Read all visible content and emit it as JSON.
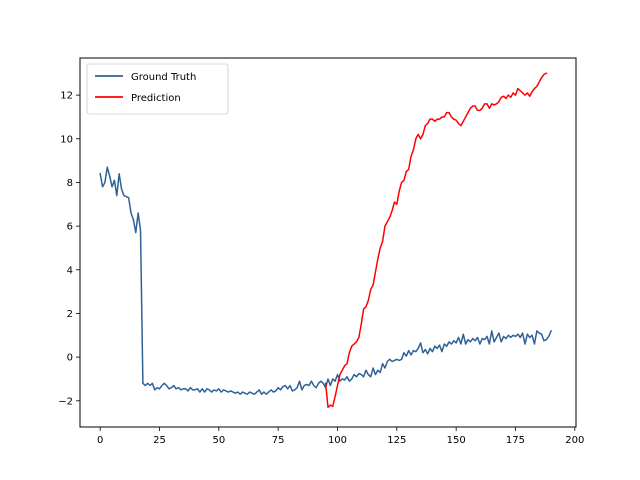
{
  "chart_data": {
    "type": "line",
    "title": "",
    "xlabel": "",
    "ylabel": "",
    "xlim": [
      -8.5,
      200.5
    ],
    "ylim": [
      -3.2,
      13.7
    ],
    "grid": false,
    "legend_position": "top-left",
    "x_ticks": [
      0,
      25,
      50,
      75,
      100,
      125,
      150,
      175,
      200
    ],
    "y_ticks": [
      -2,
      0,
      2,
      4,
      6,
      8,
      10,
      12
    ],
    "series": [
      {
        "name": "Ground Truth",
        "color": "#2f6197",
        "points": [
          [
            0,
            8.4
          ],
          [
            1,
            7.8
          ],
          [
            2,
            8.0
          ],
          [
            3,
            8.7
          ],
          [
            4,
            8.3
          ],
          [
            5,
            7.8
          ],
          [
            6,
            8.1
          ],
          [
            7,
            7.4
          ],
          [
            8,
            8.4
          ],
          [
            9,
            7.7
          ],
          [
            10,
            7.4
          ],
          [
            11,
            7.35
          ],
          [
            12,
            7.3
          ],
          [
            13,
            6.6
          ],
          [
            14,
            6.3
          ],
          [
            15,
            5.7
          ],
          [
            16,
            6.6
          ],
          [
            17,
            5.8
          ],
          [
            18,
            -1.2
          ],
          [
            19,
            -1.3
          ],
          [
            20,
            -1.2
          ],
          [
            21,
            -1.3
          ],
          [
            22,
            -1.2
          ],
          [
            23,
            -1.5
          ],
          [
            24,
            -1.4
          ],
          [
            25,
            -1.45
          ],
          [
            26,
            -1.3
          ],
          [
            27,
            -1.2
          ],
          [
            28,
            -1.3
          ],
          [
            29,
            -1.45
          ],
          [
            30,
            -1.4
          ],
          [
            31,
            -1.3
          ],
          [
            32,
            -1.45
          ],
          [
            33,
            -1.4
          ],
          [
            34,
            -1.5
          ],
          [
            35,
            -1.45
          ],
          [
            36,
            -1.45
          ],
          [
            37,
            -1.55
          ],
          [
            38,
            -1.4
          ],
          [
            39,
            -1.5
          ],
          [
            40,
            -1.5
          ],
          [
            41,
            -1.45
          ],
          [
            42,
            -1.6
          ],
          [
            43,
            -1.45
          ],
          [
            44,
            -1.6
          ],
          [
            45,
            -1.45
          ],
          [
            46,
            -1.5
          ],
          [
            47,
            -1.6
          ],
          [
            48,
            -1.5
          ],
          [
            49,
            -1.55
          ],
          [
            50,
            -1.45
          ],
          [
            51,
            -1.6
          ],
          [
            52,
            -1.5
          ],
          [
            53,
            -1.55
          ],
          [
            54,
            -1.6
          ],
          [
            55,
            -1.55
          ],
          [
            56,
            -1.6
          ],
          [
            57,
            -1.65
          ],
          [
            58,
            -1.6
          ],
          [
            59,
            -1.7
          ],
          [
            60,
            -1.6
          ],
          [
            61,
            -1.65
          ],
          [
            62,
            -1.7
          ],
          [
            63,
            -1.6
          ],
          [
            64,
            -1.65
          ],
          [
            65,
            -1.7
          ],
          [
            66,
            -1.6
          ],
          [
            67,
            -1.5
          ],
          [
            68,
            -1.7
          ],
          [
            69,
            -1.6
          ],
          [
            70,
            -1.7
          ],
          [
            71,
            -1.6
          ],
          [
            72,
            -1.5
          ],
          [
            73,
            -1.6
          ],
          [
            74,
            -1.55
          ],
          [
            75,
            -1.4
          ],
          [
            76,
            -1.5
          ],
          [
            77,
            -1.35
          ],
          [
            78,
            -1.3
          ],
          [
            79,
            -1.45
          ],
          [
            80,
            -1.3
          ],
          [
            81,
            -1.55
          ],
          [
            82,
            -1.5
          ],
          [
            83,
            -1.4
          ],
          [
            84,
            -1.1
          ],
          [
            85,
            -1.5
          ],
          [
            86,
            -1.3
          ],
          [
            87,
            -1.25
          ],
          [
            88,
            -1.3
          ],
          [
            89,
            -1.1
          ],
          [
            90,
            -1.3
          ],
          [
            91,
            -1.4
          ],
          [
            92,
            -1.2
          ],
          [
            93,
            -1.1
          ],
          [
            94,
            -1.2
          ],
          [
            95,
            -1.4
          ],
          [
            96,
            -1.0
          ],
          [
            97,
            -1.3
          ],
          [
            98,
            -1.0
          ],
          [
            99,
            -1.1
          ],
          [
            100,
            -0.8
          ],
          [
            101,
            -1.1
          ],
          [
            102,
            -1.0
          ],
          [
            103,
            -1.05
          ],
          [
            104,
            -0.9
          ],
          [
            105,
            -1.1
          ],
          [
            106,
            -1.0
          ],
          [
            107,
            -0.8
          ],
          [
            108,
            -0.9
          ],
          [
            109,
            -0.75
          ],
          [
            110,
            -0.8
          ],
          [
            111,
            -0.9
          ],
          [
            112,
            -0.6
          ],
          [
            113,
            -0.8
          ],
          [
            114,
            -0.9
          ],
          [
            115,
            -0.5
          ],
          [
            116,
            -0.8
          ],
          [
            117,
            -0.6
          ],
          [
            118,
            -0.7
          ],
          [
            119,
            -0.3
          ],
          [
            120,
            -0.5
          ],
          [
            121,
            -0.2
          ],
          [
            122,
            -0.1
          ],
          [
            123,
            -0.2
          ],
          [
            124,
            -0.15
          ],
          [
            125,
            -0.1
          ],
          [
            126,
            -0.15
          ],
          [
            127,
            -0.1
          ],
          [
            128,
            0.2
          ],
          [
            129,
            0.05
          ],
          [
            130,
            0.3
          ],
          [
            131,
            0.1
          ],
          [
            132,
            0.3
          ],
          [
            133,
            0.25
          ],
          [
            134,
            0.4
          ],
          [
            135,
            0.65
          ],
          [
            136,
            0.2
          ],
          [
            137,
            0.35
          ],
          [
            138,
            0.15
          ],
          [
            139,
            0.4
          ],
          [
            140,
            0.25
          ],
          [
            141,
            0.5
          ],
          [
            142,
            0.4
          ],
          [
            143,
            0.55
          ],
          [
            144,
            0.25
          ],
          [
            145,
            0.6
          ],
          [
            146,
            0.5
          ],
          [
            147,
            0.7
          ],
          [
            148,
            0.6
          ],
          [
            149,
            0.75
          ],
          [
            150,
            0.65
          ],
          [
            151,
            0.9
          ],
          [
            152,
            0.6
          ],
          [
            153,
            1.05
          ],
          [
            154,
            0.6
          ],
          [
            155,
            0.8
          ],
          [
            156,
            0.7
          ],
          [
            157,
            0.85
          ],
          [
            158,
            0.75
          ],
          [
            159,
            0.9
          ],
          [
            160,
            0.6
          ],
          [
            161,
            0.85
          ],
          [
            162,
            0.8
          ],
          [
            163,
            0.95
          ],
          [
            164,
            0.6
          ],
          [
            165,
            1.2
          ],
          [
            166,
            0.7
          ],
          [
            167,
            0.9
          ],
          [
            168,
            1.1
          ],
          [
            169,
            0.7
          ],
          [
            170,
            0.95
          ],
          [
            171,
            0.85
          ],
          [
            172,
            1.0
          ],
          [
            173,
            0.9
          ],
          [
            174,
            1.0
          ],
          [
            175,
            0.95
          ],
          [
            176,
            1.05
          ],
          [
            177,
            0.9
          ],
          [
            178,
            1.1
          ],
          [
            179,
            0.6
          ],
          [
            180,
            1.05
          ],
          [
            181,
            0.9
          ],
          [
            182,
            1.0
          ],
          [
            183,
            0.6
          ],
          [
            184,
            1.2
          ],
          [
            185,
            1.1
          ],
          [
            186,
            1.05
          ],
          [
            187,
            0.75
          ],
          [
            188,
            0.8
          ],
          [
            189,
            0.95
          ],
          [
            190,
            1.2
          ]
        ]
      },
      {
        "name": "Prediction",
        "color": "#ff0000",
        "points": [
          [
            95,
            -1.2
          ],
          [
            96,
            -2.3
          ],
          [
            97,
            -2.2
          ],
          [
            98,
            -2.25
          ],
          [
            99,
            -1.8
          ],
          [
            100,
            -1.3
          ],
          [
            101,
            -0.8
          ],
          [
            102,
            -0.6
          ],
          [
            103,
            -0.4
          ],
          [
            104,
            -0.3
          ],
          [
            105,
            0.2
          ],
          [
            106,
            0.5
          ],
          [
            107,
            0.6
          ],
          [
            108,
            0.7
          ],
          [
            109,
            0.9
          ],
          [
            110,
            1.5
          ],
          [
            111,
            2.2
          ],
          [
            112,
            2.3
          ],
          [
            113,
            2.6
          ],
          [
            114,
            3.1
          ],
          [
            115,
            3.3
          ],
          [
            116,
            3.9
          ],
          [
            117,
            4.5
          ],
          [
            118,
            5.0
          ],
          [
            119,
            5.3
          ],
          [
            120,
            6.0
          ],
          [
            121,
            6.2
          ],
          [
            122,
            6.4
          ],
          [
            123,
            6.7
          ],
          [
            124,
            7.1
          ],
          [
            125,
            7.0
          ],
          [
            126,
            7.6
          ],
          [
            127,
            8.0
          ],
          [
            128,
            8.1
          ],
          [
            129,
            8.5
          ],
          [
            130,
            8.6
          ],
          [
            131,
            9.2
          ],
          [
            132,
            9.5
          ],
          [
            133,
            10.0
          ],
          [
            134,
            10.2
          ],
          [
            135,
            10.0
          ],
          [
            136,
            10.2
          ],
          [
            137,
            10.6
          ],
          [
            138,
            10.7
          ],
          [
            139,
            10.9
          ],
          [
            140,
            10.9
          ],
          [
            141,
            10.8
          ],
          [
            142,
            10.9
          ],
          [
            143,
            10.9
          ],
          [
            144,
            11.0
          ],
          [
            145,
            11.0
          ],
          [
            146,
            11.2
          ],
          [
            147,
            11.2
          ],
          [
            148,
            11.0
          ],
          [
            149,
            10.9
          ],
          [
            150,
            10.85
          ],
          [
            151,
            10.7
          ],
          [
            152,
            10.6
          ],
          [
            153,
            10.8
          ],
          [
            154,
            11.0
          ],
          [
            155,
            11.2
          ],
          [
            156,
            11.4
          ],
          [
            157,
            11.5
          ],
          [
            158,
            11.5
          ],
          [
            159,
            11.3
          ],
          [
            160,
            11.3
          ],
          [
            161,
            11.4
          ],
          [
            162,
            11.6
          ],
          [
            163,
            11.6
          ],
          [
            164,
            11.4
          ],
          [
            165,
            11.6
          ],
          [
            166,
            11.55
          ],
          [
            167,
            11.6
          ],
          [
            168,
            11.7
          ],
          [
            169,
            11.9
          ],
          [
            170,
            11.95
          ],
          [
            171,
            11.85
          ],
          [
            172,
            12.0
          ],
          [
            173,
            11.9
          ],
          [
            174,
            12.1
          ],
          [
            175,
            12.0
          ],
          [
            176,
            12.3
          ],
          [
            177,
            12.2
          ],
          [
            178,
            12.1
          ],
          [
            179,
            12.0
          ],
          [
            180,
            12.1
          ],
          [
            181,
            11.95
          ],
          [
            182,
            12.15
          ],
          [
            183,
            12.3
          ],
          [
            184,
            12.4
          ],
          [
            185,
            12.6
          ],
          [
            186,
            12.8
          ],
          [
            187,
            12.95
          ],
          [
            188,
            13.0
          ]
        ]
      }
    ]
  }
}
